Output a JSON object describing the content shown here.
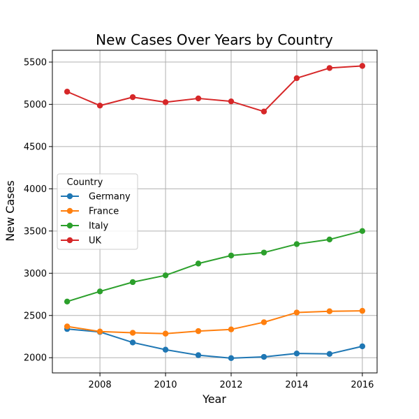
{
  "chart_data": {
    "type": "line",
    "title": "New Cases Over Years by Country",
    "xlabel": "Year",
    "ylabel": "New Cases",
    "x": [
      2007,
      2008,
      2009,
      2010,
      2011,
      2012,
      2013,
      2014,
      2015,
      2016
    ],
    "xlim": [
      2006.55,
      2016.45
    ],
    "ylim": [
      1820,
      5640
    ],
    "xticks": [
      2008,
      2010,
      2012,
      2014,
      2016
    ],
    "yticks": [
      2000,
      2500,
      3000,
      3500,
      4000,
      4500,
      5000,
      5500
    ],
    "grid": true,
    "legend": {
      "title": "Country",
      "placement": "center-left"
    },
    "series": [
      {
        "name": "Germany",
        "color": "#1f77b4",
        "values": [
          2340,
          2305,
          2180,
          2095,
          2030,
          1995,
          2010,
          2050,
          2045,
          2135
        ]
      },
      {
        "name": "France",
        "color": "#ff7f0e",
        "values": [
          2370,
          2310,
          2295,
          2285,
          2315,
          2335,
          2420,
          2535,
          2550,
          2555
        ]
      },
      {
        "name": "Italy",
        "color": "#2ca02c",
        "values": [
          2665,
          2785,
          2895,
          2975,
          3115,
          3210,
          3245,
          3345,
          3400,
          3500
        ]
      },
      {
        "name": "UK",
        "color": "#d62728",
        "values": [
          5150,
          4985,
          5085,
          5025,
          5070,
          5035,
          4915,
          5310,
          5430,
          5455
        ]
      }
    ]
  }
}
